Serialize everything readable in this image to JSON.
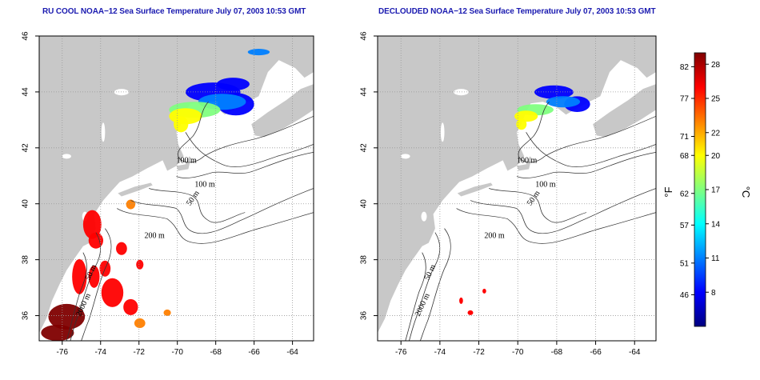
{
  "panels": [
    {
      "id": "left",
      "title": "RU COOL NOAA−12 Sea Surface Temperature July 07, 2003 10:53 GMT",
      "x_ticks": [
        "-76",
        "-74",
        "-72",
        "-70",
        "-68",
        "-66",
        "-64"
      ],
      "y_ticks": [
        "46",
        "44",
        "42",
        "40",
        "38",
        "36"
      ],
      "contour_labels": [
        "100 m",
        "100 m",
        "50 m",
        "200 m",
        "50 m",
        "2000 m"
      ]
    },
    {
      "id": "right",
      "title": "DECLOUDED NOAA−12 Sea Surface Temperature July 07, 2003 10:53 GMT",
      "x_ticks": [
        "-76",
        "-74",
        "-72",
        "-70",
        "-68",
        "-66",
        "-64"
      ],
      "y_ticks": [
        "46",
        "44",
        "42",
        "40",
        "38",
        "36"
      ],
      "contour_labels": [
        "100 m",
        "100 m",
        "50 m",
        "200 m",
        "50 m",
        "2000 m"
      ]
    }
  ],
  "map_extent": {
    "lon": [
      -77.2,
      -62.9
    ],
    "lat": [
      35.1,
      46.0
    ]
  },
  "colorbar": {
    "unit_f": "°F",
    "unit_c": "°C",
    "range_c": [
      5,
      29
    ],
    "fahrenheit_ticks": [
      "82",
      "77",
      "71",
      "68",
      "62",
      "57",
      "51",
      "46"
    ],
    "celsius_ticks": [
      "28",
      "25",
      "22",
      "20",
      "17",
      "14",
      "11",
      "8"
    ],
    "colors": [
      "#000080",
      "#0000ff",
      "#0080ff",
      "#00ffff",
      "#80ff80",
      "#ffff00",
      "#ff8000",
      "#ff0000",
      "#800000"
    ]
  },
  "colors": {
    "land": "#c8c8c8",
    "title": "#1a1ab0"
  }
}
